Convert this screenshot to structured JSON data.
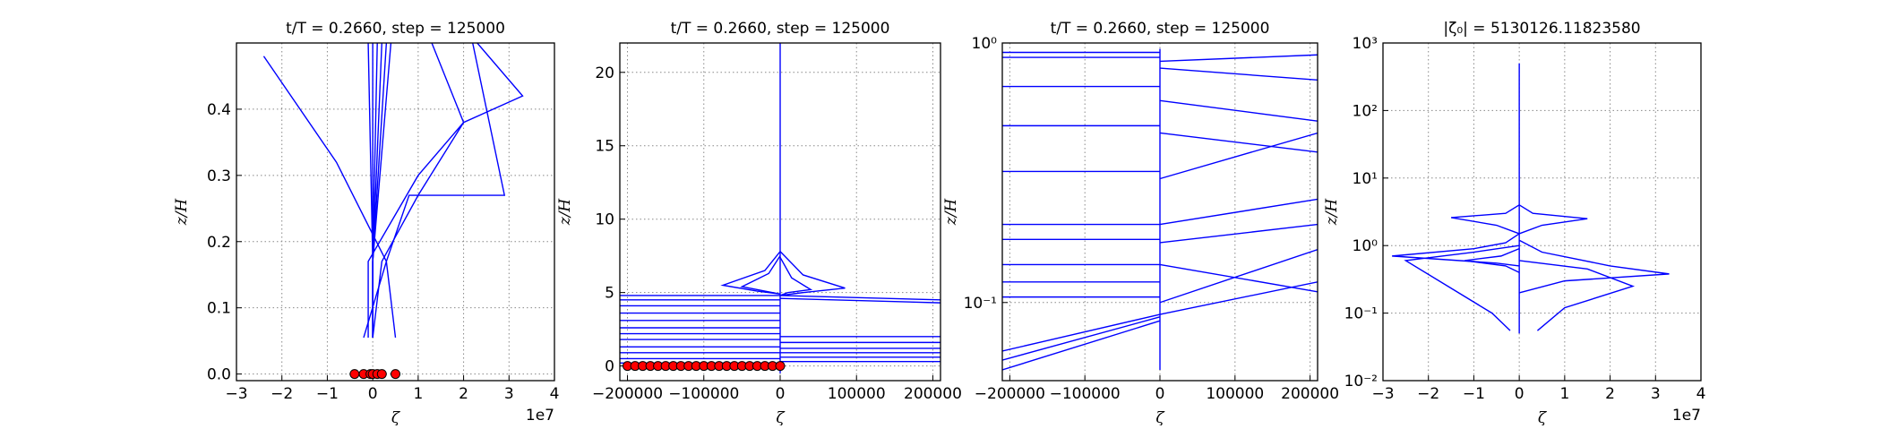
{
  "chart_data": [
    {
      "type": "line",
      "title": "t/T = 0.2660, step = 125000",
      "xlabel": "ζ",
      "ylabel": "z/H",
      "x_offset_text": "1e7",
      "grid": true,
      "yscale": "linear",
      "xlim": [
        -30000000,
        40000000
      ],
      "xticks": [
        {
          "value": -30000000,
          "label": "−3"
        },
        {
          "value": -20000000,
          "label": "−2"
        },
        {
          "value": -10000000,
          "label": "−1"
        },
        0,
        {
          "value": 10000000,
          "label": "1"
        },
        {
          "value": 20000000,
          "label": "2"
        },
        {
          "value": 30000000,
          "label": "3"
        },
        {
          "value": 40000000,
          "label": "4"
        }
      ],
      "ylim": [
        -0.01,
        0.5
      ],
      "yticks": [
        {
          "value": 0,
          "label": "0.0"
        },
        0.1,
        0.2,
        0.3,
        0.4
      ],
      "series": [
        {
          "color": "#0000ff",
          "x": [
            0,
            2000000,
            10000000,
            20000000,
            33000000,
            23000000
          ],
          "values": [
            0.055,
            0.17,
            0.27,
            0.38,
            0.42,
            0.5
          ]
        },
        {
          "color": "#0000ff",
          "x": [
            5000000,
            3000000,
            8000000,
            29000000,
            22000000
          ],
          "values": [
            0.055,
            0.17,
            0.27,
            0.27,
            0.5
          ]
        },
        {
          "color": "#0000ff",
          "x": [
            -2000000,
            3000000,
            -8000000,
            -24000000
          ],
          "values": [
            0.055,
            0.17,
            0.32,
            0.48
          ]
        },
        {
          "color": "#0000ff",
          "x": [
            -1000000,
            -1000000,
            10000000,
            20000000,
            13000000
          ],
          "values": [
            0.055,
            0.17,
            0.3,
            0.38,
            0.5
          ]
        },
        {
          "color": "#0000ff",
          "x": [
            0,
            0,
            -1000000
          ],
          "values": [
            0.055,
            0.17,
            0.5
          ]
        },
        {
          "color": "#0000ff",
          "x": [
            0,
            0,
            0
          ],
          "values": [
            0.055,
            0.17,
            0.5
          ]
        },
        {
          "color": "#0000ff",
          "x": [
            0,
            0,
            1000000
          ],
          "values": [
            0.055,
            0.17,
            0.5
          ]
        },
        {
          "color": "#0000ff",
          "x": [
            0,
            0,
            2000000
          ],
          "values": [
            0.055,
            0.17,
            0.5
          ]
        },
        {
          "color": "#0000ff",
          "x": [
            0,
            0,
            3000000
          ],
          "values": [
            0.055,
            0.17,
            0.5
          ]
        },
        {
          "color": "#0000ff",
          "x": [
            0,
            0,
            4000000
          ],
          "values": [
            0.055,
            0.17,
            0.5
          ]
        }
      ],
      "points": {
        "color": "#ff0000",
        "x": [
          -4000000,
          -2000000,
          -500000,
          0,
          1000000,
          2000000,
          5000000
        ],
        "values": [
          0,
          0,
          0,
          0,
          0,
          0,
          0
        ]
      }
    },
    {
      "type": "line",
      "title": "t/T = 0.2660, step = 125000",
      "xlabel": "ζ",
      "ylabel": "z/H",
      "grid": true,
      "yscale": "linear",
      "xlim": [
        -210000,
        210000
      ],
      "xticks": [
        {
          "value": -200000,
          "label": "−200000"
        },
        {
          "value": -100000,
          "label": "−100000"
        },
        0,
        100000,
        200000
      ],
      "ylim": [
        -1,
        22
      ],
      "yticks": [
        0,
        5,
        10,
        15,
        20
      ],
      "series": [
        {
          "color": "#0000ff",
          "x": [
            0,
            0,
            0
          ],
          "values": [
            -0.5,
            5,
            22
          ]
        },
        {
          "color": "#0000ff",
          "x": [
            -210000,
            0
          ],
          "values": [
            4.8,
            4.8
          ]
        },
        {
          "color": "#0000ff",
          "x": [
            -210000,
            0
          ],
          "values": [
            4.5,
            4.5
          ]
        },
        {
          "color": "#0000ff",
          "x": [
            -210000,
            0
          ],
          "values": [
            4.1,
            4.1
          ]
        },
        {
          "color": "#0000ff",
          "x": [
            -210000,
            0
          ],
          "values": [
            3.6,
            3.6
          ]
        },
        {
          "color": "#0000ff",
          "x": [
            -210000,
            0
          ],
          "values": [
            3.1,
            3.1
          ]
        },
        {
          "color": "#0000ff",
          "x": [
            -210000,
            0
          ],
          "values": [
            2.6,
            2.6
          ]
        },
        {
          "color": "#0000ff",
          "x": [
            -210000,
            0
          ],
          "values": [
            2.2,
            2.2
          ]
        },
        {
          "color": "#0000ff",
          "x": [
            -210000,
            0
          ],
          "values": [
            1.8,
            1.8
          ]
        },
        {
          "color": "#0000ff",
          "x": [
            -210000,
            0
          ],
          "values": [
            1.3,
            1.3
          ]
        },
        {
          "color": "#0000ff",
          "x": [
            -210000,
            0
          ],
          "values": [
            0.9,
            0.9
          ]
        },
        {
          "color": "#0000ff",
          "x": [
            -210000,
            0
          ],
          "values": [
            0.5,
            0.5
          ]
        },
        {
          "color": "#0000ff",
          "x": [
            -210000,
            0
          ],
          "values": [
            0.2,
            0.2
          ]
        },
        {
          "color": "#0000ff",
          "x": [
            0,
            210000
          ],
          "values": [
            4.8,
            4.5
          ]
        },
        {
          "color": "#0000ff",
          "x": [
            0,
            210000
          ],
          "values": [
            4.6,
            4.3
          ]
        },
        {
          "color": "#0000ff",
          "x": [
            0,
            210000
          ],
          "values": [
            2.0,
            2.0
          ]
        },
        {
          "color": "#0000ff",
          "x": [
            0,
            210000
          ],
          "values": [
            1.6,
            1.6
          ]
        },
        {
          "color": "#0000ff",
          "x": [
            0,
            210000
          ],
          "values": [
            1.2,
            1.2
          ]
        },
        {
          "color": "#0000ff",
          "x": [
            0,
            210000
          ],
          "values": [
            0.9,
            0.9
          ]
        },
        {
          "color": "#0000ff",
          "x": [
            0,
            210000
          ],
          "values": [
            0.6,
            0.6
          ]
        },
        {
          "color": "#0000ff",
          "x": [
            0,
            210000
          ],
          "values": [
            0.3,
            0.3
          ]
        },
        {
          "color": "#0000ff",
          "x": [
            0,
            -20000,
            -75000,
            -30000,
            0
          ],
          "values": [
            7.8,
            6.5,
            5.5,
            5.1,
            4.9
          ]
        },
        {
          "color": "#0000ff",
          "x": [
            0,
            -15000,
            -50000,
            -20000,
            0
          ],
          "values": [
            7.5,
            6.3,
            5.4,
            5.1,
            4.9
          ]
        },
        {
          "color": "#0000ff",
          "x": [
            0,
            30000,
            85000,
            30000,
            0
          ],
          "values": [
            7.8,
            6.2,
            5.3,
            5.0,
            4.8
          ]
        },
        {
          "color": "#0000ff",
          "x": [
            0,
            15000,
            40000,
            10000,
            0
          ],
          "values": [
            7.4,
            6.0,
            5.2,
            5.0,
            4.8
          ]
        }
      ],
      "points": {
        "color": "#ff0000",
        "x": [
          -200000,
          -190000,
          -180000,
          -170000,
          -160000,
          -150000,
          -140000,
          -130000,
          -120000,
          -110000,
          -100000,
          -90000,
          -80000,
          -70000,
          -60000,
          -50000,
          -40000,
          -30000,
          -20000,
          -10000,
          0
        ],
        "values": [
          0,
          0,
          0,
          0,
          0,
          0,
          0,
          0,
          0,
          0,
          0,
          0,
          0,
          0,
          0,
          0,
          0,
          0,
          0,
          0,
          0
        ]
      }
    },
    {
      "type": "line",
      "title": "t/T = 0.2660, step = 125000",
      "xlabel": "ζ",
      "ylabel": "z/H",
      "grid": true,
      "yscale": "log",
      "xlim": [
        -210000,
        210000
      ],
      "xticks": [
        {
          "value": -200000,
          "label": "−200000"
        },
        {
          "value": -100000,
          "label": "−100000"
        },
        0,
        100000,
        200000
      ],
      "ylim": [
        0.05,
        1
      ],
      "yticks": [
        {
          "value": 0.1,
          "label": "10⁻¹"
        },
        {
          "value": 1,
          "label": "10⁰"
        }
      ],
      "series": [
        {
          "color": "#0000ff",
          "x": [
            0,
            0
          ],
          "values": [
            0.055,
            0.95
          ]
        },
        {
          "color": "#0000ff",
          "x": [
            -210000,
            0
          ],
          "values": [
            0.92,
            0.92
          ]
        },
        {
          "color": "#0000ff",
          "x": [
            -210000,
            0
          ],
          "values": [
            0.88,
            0.88
          ]
        },
        {
          "color": "#0000ff",
          "x": [
            -210000,
            0
          ],
          "values": [
            0.68,
            0.68
          ]
        },
        {
          "color": "#0000ff",
          "x": [
            -210000,
            0
          ],
          "values": [
            0.48,
            0.48
          ]
        },
        {
          "color": "#0000ff",
          "x": [
            -210000,
            0
          ],
          "values": [
            0.32,
            0.32
          ]
        },
        {
          "color": "#0000ff",
          "x": [
            -210000,
            0
          ],
          "values": [
            0.2,
            0.2
          ]
        },
        {
          "color": "#0000ff",
          "x": [
            -210000,
            0
          ],
          "values": [
            0.175,
            0.175
          ]
        },
        {
          "color": "#0000ff",
          "x": [
            -210000,
            0
          ],
          "values": [
            0.14,
            0.14
          ]
        },
        {
          "color": "#0000ff",
          "x": [
            -210000,
            0
          ],
          "values": [
            0.12,
            0.12
          ]
        },
        {
          "color": "#0000ff",
          "x": [
            -210000,
            0
          ],
          "values": [
            0.105,
            0.105
          ]
        },
        {
          "color": "#0000ff",
          "x": [
            -210000,
            0
          ],
          "values": [
            0.055,
            0.085
          ]
        },
        {
          "color": "#0000ff",
          "x": [
            -210000,
            0
          ],
          "values": [
            0.06,
            0.088
          ]
        },
        {
          "color": "#0000ff",
          "x": [
            -210000,
            0
          ],
          "values": [
            0.065,
            0.09
          ]
        },
        {
          "color": "#0000ff",
          "x": [
            0,
            210000
          ],
          "values": [
            0.09,
            0.12
          ]
        },
        {
          "color": "#0000ff",
          "x": [
            0,
            210000
          ],
          "values": [
            0.1,
            0.16
          ]
        },
        {
          "color": "#0000ff",
          "x": [
            0,
            210000
          ],
          "values": [
            0.14,
            0.11
          ]
        },
        {
          "color": "#0000ff",
          "x": [
            0,
            210000
          ],
          "values": [
            0.17,
            0.2
          ]
        },
        {
          "color": "#0000ff",
          "x": [
            0,
            210000
          ],
          "values": [
            0.2,
            0.25
          ]
        },
        {
          "color": "#0000ff",
          "x": [
            0,
            210000
          ],
          "values": [
            0.3,
            0.45
          ]
        },
        {
          "color": "#0000ff",
          "x": [
            0,
            210000
          ],
          "values": [
            0.45,
            0.38
          ]
        },
        {
          "color": "#0000ff",
          "x": [
            0,
            210000
          ],
          "values": [
            0.6,
            0.5
          ]
        },
        {
          "color": "#0000ff",
          "x": [
            0,
            210000
          ],
          "values": [
            0.8,
            0.72
          ]
        },
        {
          "color": "#0000ff",
          "x": [
            0,
            210000
          ],
          "values": [
            0.85,
            0.9
          ]
        }
      ]
    },
    {
      "type": "line",
      "title": "|ζ₀| = 5130126.11823580",
      "xlabel": "ζ",
      "ylabel": "z/H",
      "x_offset_text": "1e7",
      "grid": true,
      "yscale": "log",
      "xlim": [
        -30000000,
        40000000
      ],
      "xticks": [
        {
          "value": -30000000,
          "label": "−3"
        },
        {
          "value": -20000000,
          "label": "−2"
        },
        {
          "value": -10000000,
          "label": "−1"
        },
        0,
        {
          "value": 10000000,
          "label": "1"
        },
        {
          "value": 20000000,
          "label": "2"
        },
        {
          "value": 30000000,
          "label": "3"
        },
        {
          "value": 40000000,
          "label": "4"
        }
      ],
      "ylim": [
        0.01,
        1000
      ],
      "yticks": [
        {
          "value": 0.01,
          "label": "10⁻²"
        },
        {
          "value": 0.1,
          "label": "10⁻¹"
        },
        {
          "value": 1,
          "label": "10⁰"
        },
        {
          "value": 10,
          "label": "10¹"
        },
        {
          "value": 100,
          "label": "10²"
        },
        {
          "value": 1000,
          "label": "10³"
        }
      ],
      "series": [
        {
          "color": "#0000ff",
          "x": [
            0,
            0
          ],
          "values": [
            0.05,
            500
          ]
        },
        {
          "color": "#0000ff",
          "x": [
            0,
            -5000000,
            -28000000,
            -10000000,
            -3000000,
            0
          ],
          "values": [
            0.5,
            0.55,
            0.7,
            0.9,
            1.1,
            1.5
          ]
        },
        {
          "color": "#0000ff",
          "x": [
            0,
            10000000,
            33000000,
            20000000,
            5000000,
            0
          ],
          "values": [
            0.2,
            0.3,
            0.38,
            0.5,
            0.8,
            1.2
          ]
        },
        {
          "color": "#0000ff",
          "x": [
            0,
            5000000,
            15000000,
            3000000,
            0
          ],
          "values": [
            1.5,
            2,
            2.5,
            3,
            4
          ]
        },
        {
          "color": "#0000ff",
          "x": [
            0,
            -5000000,
            -15000000,
            -3000000,
            0
          ],
          "values": [
            1.5,
            2,
            2.6,
            3,
            4
          ]
        },
        {
          "color": "#0000ff",
          "x": [
            4000000,
            10000000,
            25000000,
            15000000,
            0
          ],
          "values": [
            0.055,
            0.12,
            0.25,
            0.45,
            0.6
          ]
        },
        {
          "color": "#0000ff",
          "x": [
            -2000000,
            -6000000,
            -25000000,
            -10000000,
            0
          ],
          "values": [
            0.055,
            0.1,
            0.6,
            0.8,
            1
          ]
        },
        {
          "color": "#0000ff",
          "x": [
            0,
            -3000000,
            -12000000,
            -4000000,
            0
          ],
          "values": [
            0.4,
            0.5,
            0.6,
            0.7,
            0.9
          ]
        }
      ]
    }
  ]
}
